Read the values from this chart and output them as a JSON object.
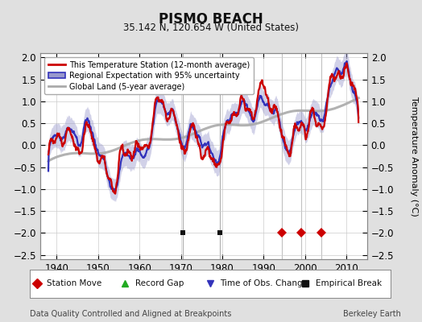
{
  "title": "PISMO BEACH",
  "subtitle": "35.142 N, 120.654 W (United States)",
  "ylabel": "Temperature Anomaly (°C)",
  "footer_left": "Data Quality Controlled and Aligned at Breakpoints",
  "footer_right": "Berkeley Earth",
  "xlim": [
    1936,
    2015
  ],
  "ylim": [
    -2.6,
    2.1
  ],
  "yticks": [
    -2.5,
    -2,
    -1.5,
    -1,
    -0.5,
    0,
    0.5,
    1,
    1.5,
    2
  ],
  "xticks": [
    1940,
    1950,
    1960,
    1970,
    1980,
    1990,
    2000,
    2010
  ],
  "bg_color": "#e0e0e0",
  "plot_bg_color": "#ffffff",
  "station_moves": [
    1994.5,
    1999.0,
    2004.0
  ],
  "record_gaps": [],
  "obs_changes": [],
  "empirical_breaks": [
    1970.5,
    1979.5
  ],
  "red_line_color": "#cc0000",
  "blue_line_color": "#3333bb",
  "blue_fill_color": "#9999cc",
  "gray_line_color": "#aaaaaa",
  "marker_y": -2.0,
  "vline_color": "#999999",
  "legend_label_red": "This Temperature Station (12-month average)",
  "legend_label_blue": "Regional Expectation with 95% uncertainty",
  "legend_label_gray": "Global Land (5-year average)"
}
